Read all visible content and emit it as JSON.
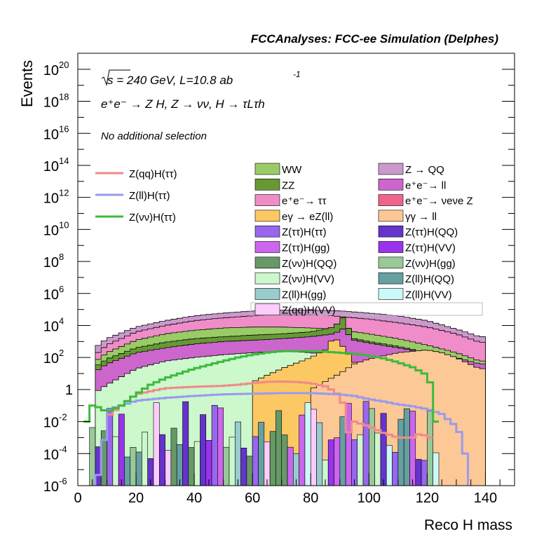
{
  "header": {
    "title": "FCCAnalyses: FCC-ee Simulation (Delphes)"
  },
  "annotations": {
    "energy_line": {
      "sqrt": "s",
      "rest": " = 240 GeV, L=10.8 ab",
      "sup": "-1"
    },
    "process_line": "e⁺e⁻ → Z H, Z → νν, H → τLτh",
    "selection_line": "No additional selection"
  },
  "colors": {
    "background": "#ffffff",
    "axis": "#000000",
    "signal_qq": "#f08a8a",
    "signal_ll": "#9a9aee",
    "signal_vv": "#3cba3c"
  },
  "chart_data": {
    "type": "area",
    "title": "FCCAnalyses: FCC-ee Simulation (Delphes)",
    "xlabel": "Reco H mass",
    "ylabel": "Events",
    "xlim": [
      0,
      150
    ],
    "ylim": [
      1e-06,
      1e+21
    ],
    "yscale": "log",
    "x_ticks": [
      "0",
      "20",
      "40",
      "60",
      "80",
      "100",
      "120",
      "140"
    ],
    "y_ticks": [
      {
        "base": "10",
        "exp": "-6"
      },
      {
        "base": "10",
        "exp": "-4"
      },
      {
        "base": "10",
        "exp": "-2"
      },
      {
        "base": "1",
        "exp": ""
      },
      {
        "base": "10",
        "exp": "2"
      },
      {
        "base": "10",
        "exp": "4"
      },
      {
        "base": "10",
        "exp": "6"
      },
      {
        "base": "10",
        "exp": "8"
      },
      {
        "base": "10",
        "exp": "10"
      },
      {
        "base": "10",
        "exp": "12"
      },
      {
        "base": "10",
        "exp": "14"
      },
      {
        "base": "10",
        "exp": "16"
      },
      {
        "base": "10",
        "exp": "18"
      },
      {
        "base": "10",
        "exp": "20"
      }
    ],
    "legend_signals": [
      {
        "name": "Z(qq)H(ττ)",
        "color": "#f08a8a"
      },
      {
        "name": "Z(ll)H(ττ)",
        "color": "#9a9aee"
      },
      {
        "name": "Z(νν)H(ττ)",
        "color": "#3cba3c"
      }
    ],
    "legend_backgrounds": [
      {
        "name": "WW",
        "color": "#99cc66"
      },
      {
        "name": "Z → QQ",
        "color": "#cc99cc"
      },
      {
        "name": "ZZ",
        "color": "#669933"
      },
      {
        "name": "e⁺e⁻→ ll",
        "color": "#cc66cc"
      },
      {
        "name": "e⁺e⁻→ ττ",
        "color": "#f08cc8"
      },
      {
        "name": "e⁺e⁻→ νeνe Z",
        "color": "#f0648c"
      },
      {
        "name": "eγ → eZ(ll)",
        "color": "#fcc864"
      },
      {
        "name": "γγ → ll",
        "color": "#fcc896"
      },
      {
        "name": "Z(ττ)H(ττ)",
        "color": "#9966ee"
      },
      {
        "name": "Z(ττ)H(QQ)",
        "color": "#6633cc"
      },
      {
        "name": "Z(ττ)H(gg)",
        "color": "#cc66ee"
      },
      {
        "name": "Z(ττ)H(VV)",
        "color": "#9933ee"
      },
      {
        "name": "Z(νν)H(QQ)",
        "color": "#669966"
      },
      {
        "name": "Z(νν)H(gg)",
        "color": "#99c899"
      },
      {
        "name": "Z(νν)H(VV)",
        "color": "#ccf8cc"
      },
      {
        "name": "Z(ll)H(QQ)",
        "color": "#66a0a0"
      },
      {
        "name": "Z(ll)H(gg)",
        "color": "#99cccc"
      },
      {
        "name": "Z(ll)H(VV)",
        "color": "#ccf8f8"
      },
      {
        "name": "Z(qq)H(VV)",
        "color": "#fcccfc"
      }
    ],
    "stack_envelopes": [
      {
        "name": "Z → QQ",
        "color": "#cc99cc",
        "x": [
          5,
          10,
          20,
          30,
          40,
          50,
          60,
          70,
          80,
          88,
          91,
          95,
          100,
          110,
          120,
          130,
          138,
          140
        ],
        "y": [
          300,
          1500,
          8000,
          20000,
          40000,
          60000,
          80000,
          90000,
          90000,
          85000,
          80000,
          70000,
          60000,
          40000,
          20000,
          6000,
          2000,
          2000
        ]
      },
      {
        "name": "e⁺e⁻→ ττ",
        "color": "#f08cc8",
        "x": [
          5,
          10,
          20,
          30,
          40,
          50,
          60,
          70,
          80,
          88,
          91,
          95,
          100,
          110,
          120,
          130,
          138,
          140
        ],
        "y": [
          100,
          600,
          4000,
          10000,
          20000,
          30000,
          40000,
          45000,
          45000,
          40000,
          35000,
          30000,
          25000,
          15000,
          8000,
          3000,
          900,
          900
        ]
      },
      {
        "name": "WW",
        "color": "#99cc66",
        "x": [
          5,
          10,
          20,
          30,
          40,
          50,
          60,
          70,
          80,
          88,
          91,
          95,
          100,
          110,
          120,
          130,
          138,
          140
        ],
        "y": [
          40,
          200,
          1200,
          3000,
          5000,
          7000,
          8000,
          8000,
          7000,
          6000,
          5000,
          4000,
          3000,
          1500,
          600,
          200,
          60,
          60
        ]
      },
      {
        "name": "ZZ",
        "color": "#669933",
        "x": [
          5,
          10,
          20,
          30,
          40,
          50,
          60,
          70,
          80,
          88,
          91,
          95,
          100,
          110,
          120,
          130,
          138,
          140
        ],
        "y": [
          20,
          80,
          400,
          900,
          1500,
          2000,
          2500,
          3000,
          4000,
          8000,
          30000,
          1500,
          1000,
          500,
          200,
          80,
          25,
          25
        ]
      },
      {
        "name": "e⁺e⁻→ ll",
        "color": "#cc66cc",
        "x": [
          5,
          10,
          20,
          30,
          40,
          50,
          60,
          70,
          80,
          88,
          91,
          95,
          100,
          110,
          120,
          130,
          138,
          140
        ],
        "y": [
          10,
          40,
          200,
          400,
          700,
          1000,
          1200,
          1500,
          2000,
          3000,
          6000,
          1200,
          800,
          400,
          200,
          100,
          40,
          40
        ]
      },
      {
        "name": "Z(νν)H(VV)",
        "color": "#ccf8cc",
        "x": [
          5,
          10,
          20,
          30,
          40,
          50,
          60,
          70,
          80,
          88,
          91,
          95,
          100,
          110,
          120,
          130,
          138,
          140
        ],
        "y": [
          0.5,
          2,
          20,
          60,
          100,
          150,
          200,
          250,
          200,
          120,
          60,
          30,
          10,
          3,
          1,
          0.3,
          0.1,
          0.1
        ]
      },
      {
        "name": "eγ → eZ(ll)",
        "color": "#fcc864",
        "x": [
          60,
          70,
          80,
          85,
          88,
          91,
          95,
          100,
          110,
          115,
          120
        ],
        "y": [
          3,
          20,
          100,
          300,
          2000,
          500,
          50,
          20,
          5,
          2,
          0.1
        ]
      },
      {
        "name": "γγ → ll",
        "color": "#fcc896",
        "x": [
          80,
          90,
          95,
          100,
          110,
          120,
          125,
          130,
          138,
          140
        ],
        "y": [
          1,
          10,
          40,
          80,
          200,
          300,
          200,
          100,
          20,
          20
        ]
      }
    ],
    "signal_series": [
      {
        "name": "Z(qq)H(ττ)",
        "x": [
          10,
          15,
          20,
          30,
          40,
          50,
          55,
          60,
          65,
          70,
          75,
          80,
          85,
          88,
          90,
          91,
          92,
          95,
          100,
          105,
          110,
          115,
          118,
          120,
          122
        ],
        "y": [
          0.02,
          0.1,
          0.5,
          1.2,
          1.5,
          1.7,
          2,
          2.5,
          3,
          3.2,
          3,
          2.5,
          1.6,
          0.8,
          0.4,
          0.15,
          0.001,
          0.01,
          0.005,
          0.002,
          0.001,
          0.001,
          0.002,
          0.001,
          0.001
        ]
      },
      {
        "name": "Z(ll)H(ττ)",
        "x": [
          5,
          8,
          10,
          12,
          15,
          20,
          30,
          40,
          50,
          60,
          70,
          80,
          90,
          95,
          100,
          105,
          110,
          115,
          120,
          125,
          128,
          130,
          132,
          135
        ],
        "y": [
          1e-06,
          1e-05,
          0.05,
          0.07,
          0.1,
          0.2,
          0.3,
          0.4,
          0.5,
          0.55,
          0.6,
          0.6,
          0.5,
          0.4,
          0.25,
          0.18,
          0.12,
          0.09,
          0.06,
          0.03,
          0.01,
          0.005,
          0.001,
          1e-06
        ]
      },
      {
        "name": "Z(νν)H(ττ)",
        "x": [
          2,
          3,
          4,
          5,
          7,
          10,
          15,
          20,
          25,
          30,
          40,
          50,
          55,
          60,
          65,
          70,
          75,
          80,
          85,
          90,
          95,
          100,
          105,
          110,
          115,
          120,
          122,
          123,
          124
        ],
        "y": [
          1e-06,
          0.01,
          0.05,
          0.1,
          0.08,
          0.04,
          0.1,
          0.5,
          2,
          5,
          20,
          60,
          100,
          150,
          200,
          250,
          250,
          250,
          230,
          200,
          170,
          130,
          90,
          50,
          25,
          8,
          1,
          0.01,
          1e-06
        ]
      }
    ]
  }
}
